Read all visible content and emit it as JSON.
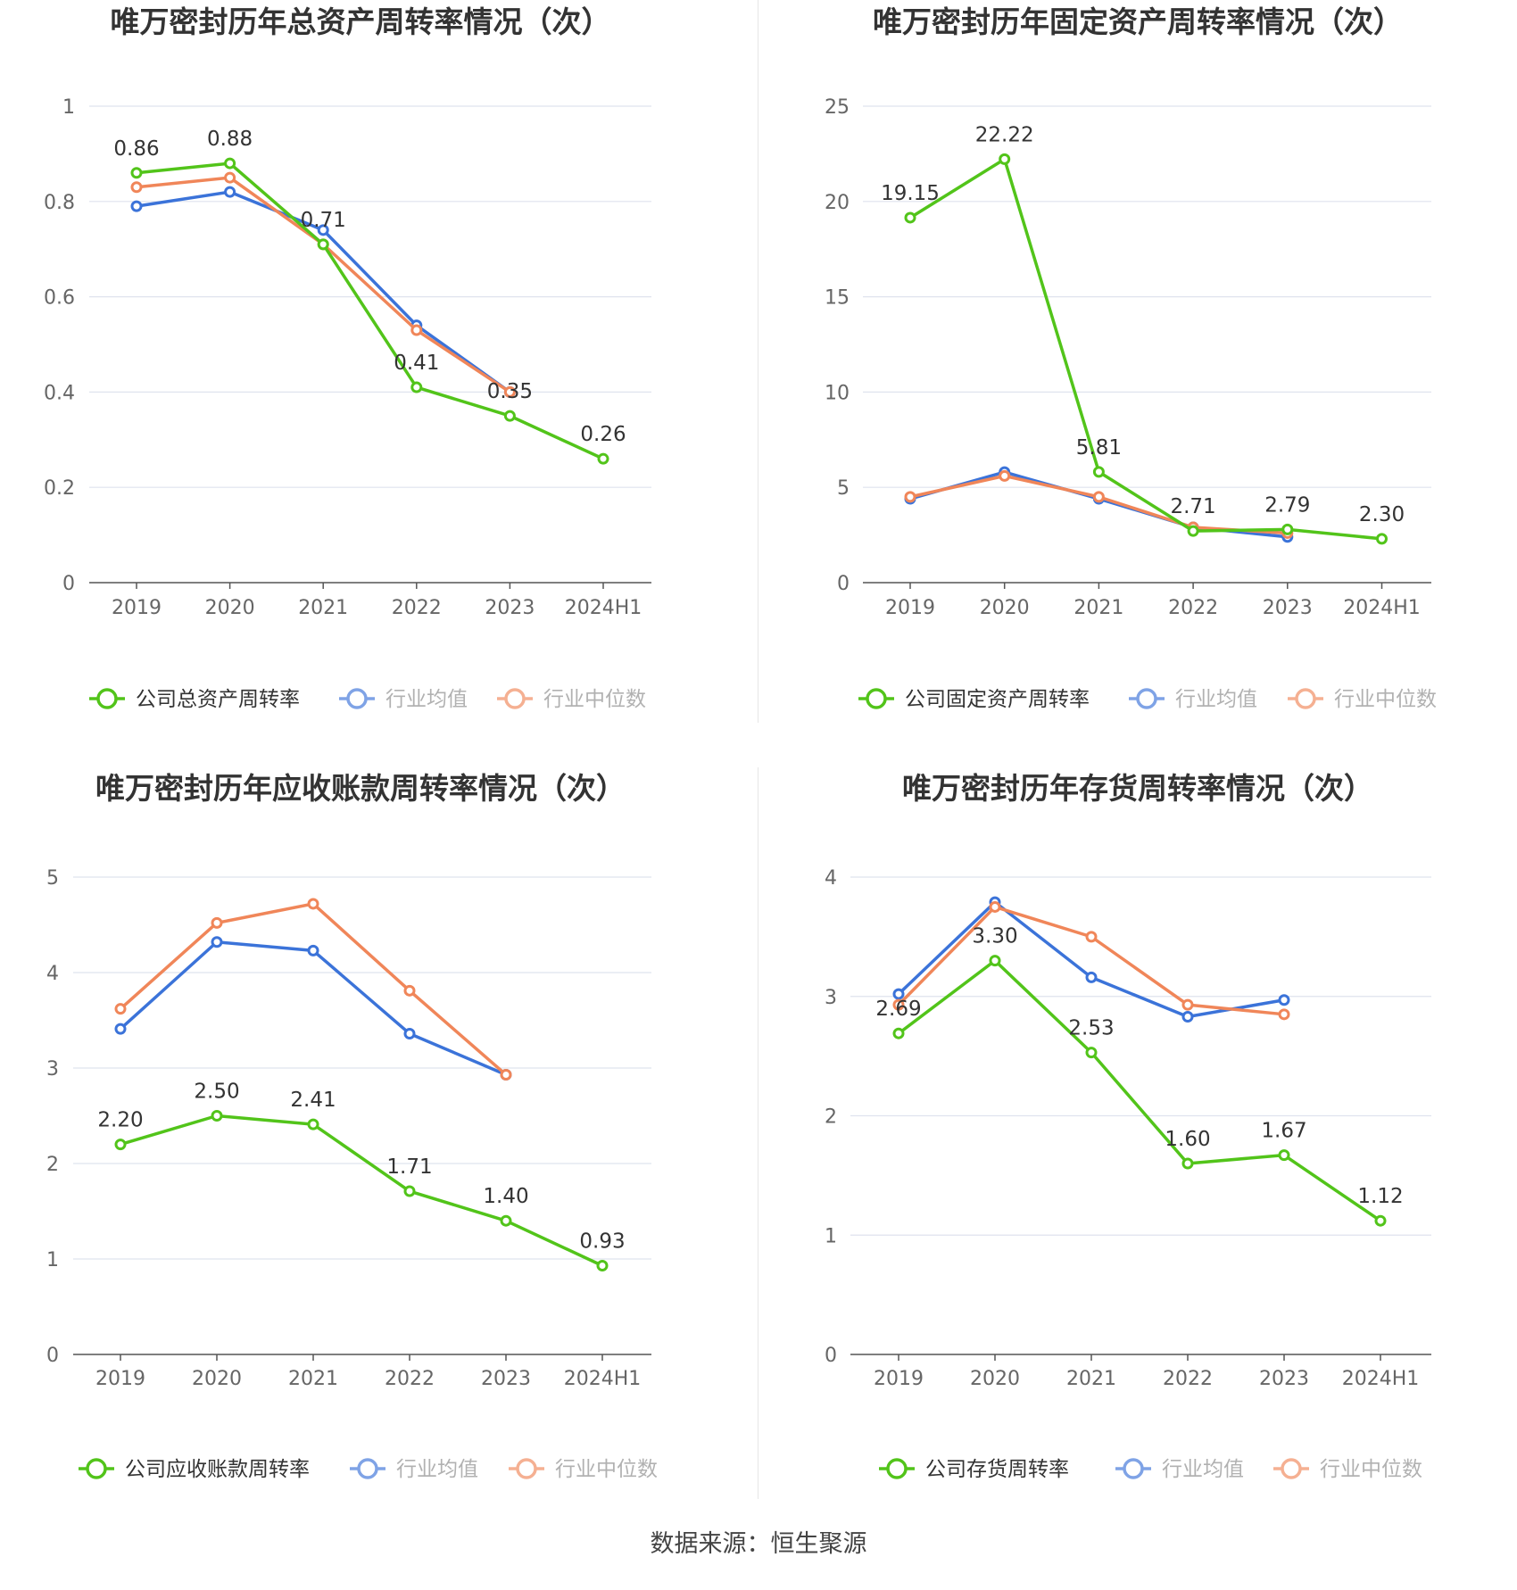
{
  "source": "数据来源：恒生聚源",
  "colors": {
    "company": "#52c41a",
    "avg": "#3b73d9",
    "median": "#f08659",
    "grid": "#dfe3ee",
    "axis": "#555555"
  },
  "chart_data": [
    {
      "type": "line",
      "title": "唯万密封历年总资产周转率情况（次）",
      "categories": [
        "2019",
        "2020",
        "2021",
        "2022",
        "2023",
        "2024H1"
      ],
      "ylim": [
        0,
        1
      ],
      "yticks": [
        "0",
        "0.2",
        "0.4",
        "0.6",
        "0.8",
        "1"
      ],
      "ytick_values": [
        0,
        0.2,
        0.4,
        0.6,
        0.8,
        1
      ],
      "series": [
        {
          "name": "公司总资产周转率",
          "key": "company",
          "values": [
            0.86,
            0.88,
            0.71,
            0.41,
            0.35,
            0.26
          ],
          "labels": [
            "0.86",
            "0.88",
            "0.71",
            "0.41",
            "0.35",
            "0.26"
          ]
        },
        {
          "name": "行业均值",
          "key": "avg",
          "values": [
            0.79,
            0.82,
            0.74,
            0.54,
            0.4,
            null
          ]
        },
        {
          "name": "行业中位数",
          "key": "median",
          "values": [
            0.83,
            0.85,
            0.71,
            0.53,
            0.4,
            null
          ]
        }
      ]
    },
    {
      "type": "line",
      "title": "唯万密封历年固定资产周转率情况（次）",
      "categories": [
        "2019",
        "2020",
        "2021",
        "2022",
        "2023",
        "2024H1"
      ],
      "ylim": [
        0,
        25
      ],
      "yticks": [
        "0",
        "5",
        "10",
        "15",
        "20",
        "25"
      ],
      "ytick_values": [
        0,
        5,
        10,
        15,
        20,
        25
      ],
      "series": [
        {
          "name": "公司固定资产周转率",
          "key": "company",
          "values": [
            19.15,
            22.22,
            5.81,
            2.71,
            2.79,
            2.3
          ],
          "labels": [
            "19.15",
            "22.22",
            "5.81",
            "2.71",
            "2.79",
            "2.30"
          ]
        },
        {
          "name": "行业均值",
          "key": "avg",
          "values": [
            4.4,
            5.8,
            4.4,
            2.9,
            2.4,
            null
          ]
        },
        {
          "name": "行业中位数",
          "key": "median",
          "values": [
            4.5,
            5.6,
            4.5,
            2.9,
            2.6,
            null
          ]
        }
      ]
    },
    {
      "type": "line",
      "title": "唯万密封历年应收账款周转率情况（次）",
      "categories": [
        "2019",
        "2020",
        "2021",
        "2022",
        "2023",
        "2024H1"
      ],
      "ylim": [
        0,
        5
      ],
      "yticks": [
        "0",
        "1",
        "2",
        "3",
        "4",
        "5"
      ],
      "ytick_values": [
        0,
        1,
        2,
        3,
        4,
        5
      ],
      "series": [
        {
          "name": "公司应收账款周转率",
          "key": "company",
          "values": [
            2.2,
            2.5,
            2.41,
            1.71,
            1.4,
            0.93
          ],
          "labels": [
            "2.20",
            "2.50",
            "2.41",
            "1.71",
            "1.40",
            "0.93"
          ]
        },
        {
          "name": "行业均值",
          "key": "avg",
          "values": [
            3.41,
            4.32,
            4.23,
            3.36,
            2.93,
            null
          ]
        },
        {
          "name": "行业中位数",
          "key": "median",
          "values": [
            3.62,
            4.52,
            4.72,
            3.81,
            2.93,
            null
          ]
        }
      ]
    },
    {
      "type": "line",
      "title": "唯万密封历年存货周转率情况（次）",
      "categories": [
        "2019",
        "2020",
        "2021",
        "2022",
        "2023",
        "2024H1"
      ],
      "ylim": [
        0,
        4
      ],
      "yticks": [
        "0",
        "1",
        "2",
        "3",
        "4"
      ],
      "ytick_values": [
        0,
        1,
        2,
        3,
        4
      ],
      "series": [
        {
          "name": "公司存货周转率",
          "key": "company",
          "values": [
            2.69,
            3.3,
            2.53,
            1.6,
            1.67,
            1.12
          ],
          "labels": [
            "2.69",
            "3.30",
            "2.53",
            "1.60",
            "1.67",
            "1.12"
          ]
        },
        {
          "name": "行业均值",
          "key": "avg",
          "values": [
            3.02,
            3.79,
            3.16,
            2.83,
            2.97,
            null
          ]
        },
        {
          "name": "行业中位数",
          "key": "median",
          "values": [
            2.93,
            3.75,
            3.5,
            2.93,
            2.85,
            null
          ]
        }
      ]
    }
  ]
}
